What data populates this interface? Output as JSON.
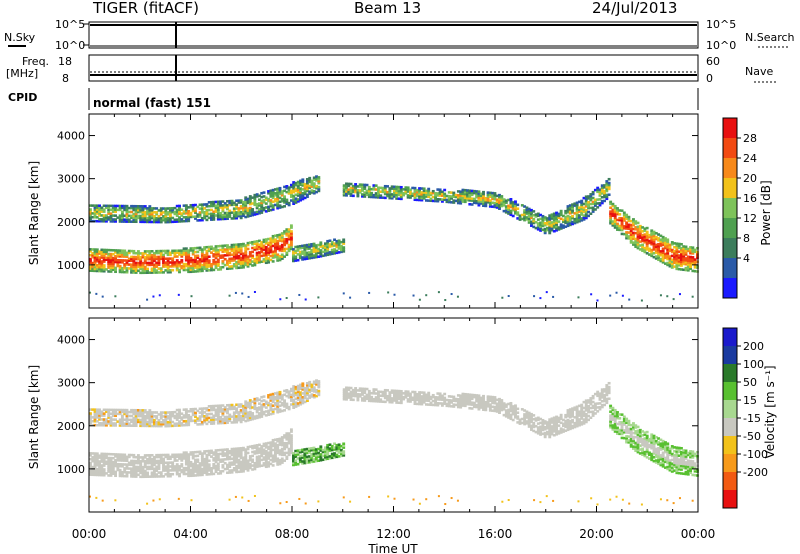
{
  "header": {
    "radar": "TIGER (fitACF)",
    "beam": "Beam 13",
    "date": "24/Jul/2013"
  },
  "top_strip": {
    "left_label": "N.Sky",
    "left_ticks": [
      "10^5",
      "10^0"
    ],
    "right_label": "N.Search",
    "right_ticks": [
      "10^5",
      "10^0"
    ]
  },
  "freq_strip": {
    "left_label_1": "Freq.",
    "left_label_2": "[MHz]",
    "left_ticks": [
      "18",
      "8"
    ],
    "right_label": "Nave",
    "right_ticks": [
      "60",
      "0"
    ]
  },
  "cpid_strip": {
    "left_label": "CPID",
    "text": "normal (fast) 151"
  },
  "colors": {
    "power": [
      "#1a1aff",
      "#2a5aa8",
      "#3c7d5c",
      "#4fa050",
      "#7ec35a",
      "#f2c21a",
      "#f7891a",
      "#f24a12",
      "#e81010"
    ],
    "velocity": [
      "#e81010",
      "#f25a12",
      "#f79a1a",
      "#f2c21a",
      "#c8c8c0",
      "#a8d890",
      "#58c030",
      "#2a7a2a",
      "#1a3aa0",
      "#1a1acc"
    ]
  },
  "chart_data": [
    {
      "type": "heatmap",
      "title": "Power",
      "ylabel": "Slant Range [km]",
      "y_ticks": [
        "4000",
        "3000",
        "2000",
        "1000"
      ],
      "ylim": [
        0,
        4500
      ],
      "x_ticks": [
        "00:00",
        "04:00",
        "08:00",
        "12:00",
        "16:00",
        "20:00",
        "00:00"
      ],
      "xlim_hours": [
        0,
        24
      ],
      "colorbar_label": "Power [dB]",
      "colorbar_ticks": [
        "28",
        "24",
        "20",
        "16",
        "12",
        "8",
        "4"
      ],
      "bands": [
        {
          "name": "main-echo",
          "points": [
            [
              0,
              1100,
              500
            ],
            [
              2,
              1050,
              500
            ],
            [
              4,
              1100,
              550
            ],
            [
              6,
              1200,
              550
            ],
            [
              7.5,
              1400,
              600
            ],
            [
              8,
              1650,
              600
            ]
          ]
        },
        {
          "name": "upper-band",
          "points": [
            [
              0,
              2200,
              400
            ],
            [
              3,
              2150,
              350
            ],
            [
              6,
              2300,
              450
            ],
            [
              8,
              2650,
              500
            ],
            [
              9,
              2900,
              400
            ]
          ]
        },
        {
          "name": "mid-band",
          "points": [
            [
              8,
              1250,
              350
            ],
            [
              9,
              1350,
              350
            ],
            [
              10,
              1450,
              300
            ]
          ]
        },
        {
          "name": "day-band",
          "points": [
            [
              10,
              2750,
              300
            ],
            [
              14,
              2600,
              300
            ],
            [
              16,
              2500,
              350
            ],
            [
              18,
              1900,
              400
            ],
            [
              19.5,
              2300,
              500
            ],
            [
              20.5,
              2800,
              400
            ]
          ]
        },
        {
          "name": "evening-band",
          "points": [
            [
              20.5,
              2200,
              500
            ],
            [
              21.5,
              1700,
              600
            ],
            [
              23,
              1200,
              600
            ],
            [
              24,
              1100,
              550
            ]
          ]
        }
      ]
    },
    {
      "type": "heatmap",
      "title": "Velocity",
      "ylabel": "Slant Range [km]",
      "y_ticks": [
        "4000",
        "3000",
        "2000",
        "1000"
      ],
      "ylim": [
        0,
        4500
      ],
      "x_ticks": [
        "00:00",
        "04:00",
        "08:00",
        "12:00",
        "16:00",
        "20:00",
        "00:00"
      ],
      "xlim_hours": [
        0,
        24
      ],
      "xlabel": "Time UT",
      "colorbar_label": "Velocity [m s⁻¹]",
      "colorbar_ticks": [
        "200",
        "100",
        "50",
        "15",
        "-15",
        "-50",
        "-100",
        "-200"
      ]
    }
  ]
}
